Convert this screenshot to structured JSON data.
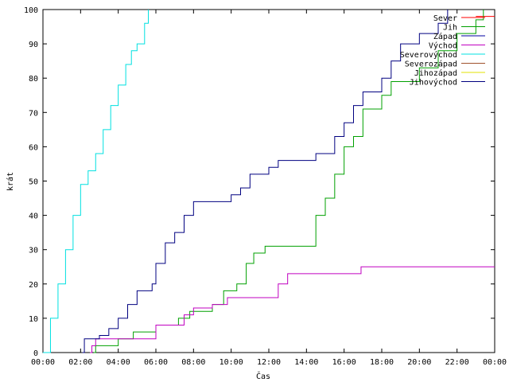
{
  "chart_data": {
    "type": "line",
    "xlabel": "Čas",
    "ylabel": "krát",
    "xlim": [
      0,
      24
    ],
    "ylim": [
      0,
      100
    ],
    "x_ticks": [
      "00:00",
      "02:00",
      "04:00",
      "06:00",
      "08:00",
      "10:00",
      "12:00",
      "14:00",
      "16:00",
      "18:00",
      "20:00",
      "22:00",
      "00:00"
    ],
    "y_ticks": [
      "0",
      "10",
      "20",
      "30",
      "40",
      "50",
      "60",
      "70",
      "80",
      "90",
      "100"
    ],
    "legend_position": "top-right",
    "series": [
      {
        "name": "Sever",
        "color": "#ff0000",
        "points": [
          [
            23,
            98
          ],
          [
            24,
            98
          ]
        ]
      },
      {
        "name": "Jih",
        "color": "#00a000",
        "points": [
          [
            2.7,
            0
          ],
          [
            2.8,
            2
          ],
          [
            4.0,
            4
          ],
          [
            4.8,
            6
          ],
          [
            6.0,
            8
          ],
          [
            7.2,
            10
          ],
          [
            7.8,
            12
          ],
          [
            9.0,
            14
          ],
          [
            9.6,
            18
          ],
          [
            10.3,
            20
          ],
          [
            10.8,
            26
          ],
          [
            11.2,
            29
          ],
          [
            11.8,
            31
          ],
          [
            14.0,
            31
          ],
          [
            14.5,
            40
          ],
          [
            15.0,
            45
          ],
          [
            15.5,
            52
          ],
          [
            16.0,
            60
          ],
          [
            16.5,
            63
          ],
          [
            17.0,
            71
          ],
          [
            18.0,
            75
          ],
          [
            18.5,
            79
          ],
          [
            20.0,
            83
          ],
          [
            21.0,
            88
          ],
          [
            22.0,
            93
          ],
          [
            23.0,
            97
          ],
          [
            23.4,
            100
          ]
        ]
      },
      {
        "name": "Západ",
        "color": "#0000a0",
        "points": []
      },
      {
        "name": "Východ",
        "color": "#c000c0",
        "points": [
          [
            2.5,
            0
          ],
          [
            2.6,
            2
          ],
          [
            2.8,
            4
          ],
          [
            5.8,
            4
          ],
          [
            6.0,
            8
          ],
          [
            7.0,
            8
          ],
          [
            7.5,
            11
          ],
          [
            8.0,
            13
          ],
          [
            9.0,
            14
          ],
          [
            9.8,
            16
          ],
          [
            12.0,
            16
          ],
          [
            12.5,
            20
          ],
          [
            13.0,
            23
          ],
          [
            16.8,
            23
          ],
          [
            16.9,
            25
          ],
          [
            24,
            25
          ]
        ]
      },
      {
        "name": "Severovýchod",
        "color": "#00e0e0",
        "points": [
          [
            0,
            0
          ],
          [
            0.4,
            10
          ],
          [
            0.8,
            20
          ],
          [
            1.2,
            30
          ],
          [
            1.6,
            40
          ],
          [
            2.0,
            49
          ],
          [
            2.4,
            53
          ],
          [
            2.8,
            58
          ],
          [
            3.2,
            65
          ],
          [
            3.6,
            72
          ],
          [
            4.0,
            78
          ],
          [
            4.4,
            84
          ],
          [
            4.7,
            88
          ],
          [
            5.0,
            90
          ],
          [
            5.4,
            96
          ],
          [
            5.6,
            100
          ]
        ]
      },
      {
        "name": "Severozápad",
        "color": "#a0522d",
        "points": []
      },
      {
        "name": "Jihozápad",
        "color": "#e0e000",
        "points": []
      },
      {
        "name": "Jihovýchod",
        "color": "#000080",
        "points": [
          [
            2.1,
            0
          ],
          [
            2.2,
            4
          ],
          [
            3.0,
            5
          ],
          [
            3.5,
            7
          ],
          [
            4.0,
            10
          ],
          [
            4.5,
            14
          ],
          [
            5.0,
            18
          ],
          [
            5.8,
            20
          ],
          [
            6.0,
            26
          ],
          [
            6.5,
            32
          ],
          [
            7.0,
            35
          ],
          [
            7.5,
            40
          ],
          [
            8.0,
            44
          ],
          [
            9.5,
            44
          ],
          [
            10.0,
            46
          ],
          [
            10.5,
            48
          ],
          [
            11.0,
            52
          ],
          [
            12.0,
            54
          ],
          [
            12.5,
            56
          ],
          [
            14.5,
            58
          ],
          [
            15.5,
            63
          ],
          [
            16.0,
            67
          ],
          [
            16.5,
            72
          ],
          [
            17.0,
            76
          ],
          [
            18.0,
            80
          ],
          [
            18.5,
            85
          ],
          [
            19.0,
            90
          ],
          [
            20.0,
            93
          ],
          [
            21.0,
            96
          ],
          [
            21.5,
            100
          ]
        ]
      }
    ]
  }
}
